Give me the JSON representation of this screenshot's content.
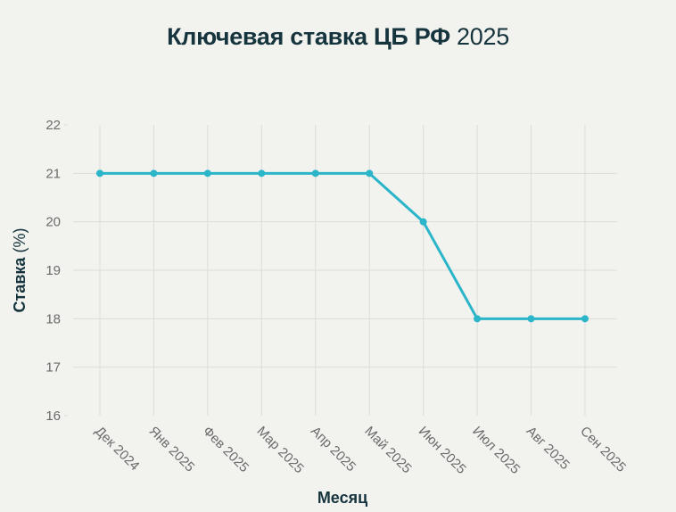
{
  "title": {
    "bold": "Ключевая ставка ЦБ РФ",
    "regular": "2025"
  },
  "colors": {
    "line": "#2bb5c9",
    "title": "#16343d",
    "grid": "#dcdcd8",
    "background": "#f2f2ef",
    "ticks": "#6b6b6b"
  },
  "chart_data": {
    "type": "line",
    "title": "Ключевая ставка ЦБ РФ 2025",
    "xlabel": "Месяц",
    "ylabel": "Ставка (%)",
    "categories": [
      "Дек 2024",
      "Янв 2025",
      "Фев 2025",
      "Мар 2025",
      "Апр 2025",
      "Май 2025",
      "Июн 2025",
      "Июл 2025",
      "Авг 2025",
      "Сен 2025"
    ],
    "series": [
      {
        "name": "Ключевая ставка",
        "values": [
          21,
          21,
          21,
          21,
          21,
          21,
          20,
          18,
          18,
          18
        ]
      }
    ],
    "yticks": [
      16,
      17,
      18,
      19,
      20,
      21,
      22
    ],
    "ylim": [
      16,
      22
    ],
    "grid": true,
    "legend": null,
    "markers": true
  },
  "axes": {
    "ylabel_bold": "Ставка",
    "ylabel_regular": "(%)",
    "xlabel": "Месяц"
  }
}
